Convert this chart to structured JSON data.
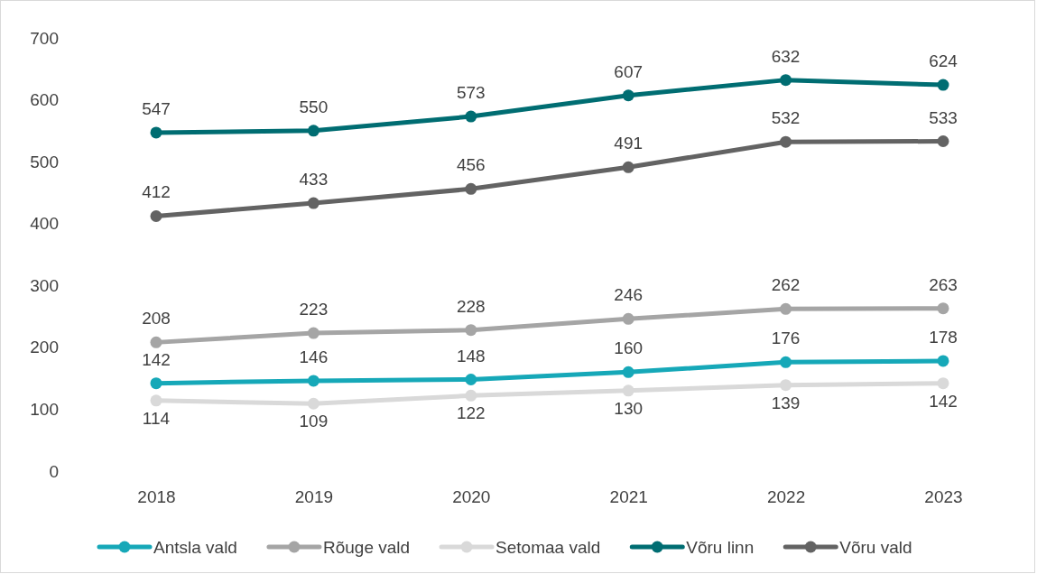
{
  "chart_data": {
    "type": "line",
    "categories": [
      "2018",
      "2019",
      "2020",
      "2021",
      "2022",
      "2023"
    ],
    "series": [
      {
        "name": "Antsla vald",
        "color": "#16a8b8",
        "values": [
          142,
          146,
          148,
          160,
          176,
          178
        ]
      },
      {
        "name": "Rõuge vald",
        "color": "#a5a5a5",
        "values": [
          208,
          223,
          228,
          246,
          262,
          263
        ]
      },
      {
        "name": "Setomaa vald",
        "color": "#d9d9d9",
        "values": [
          114,
          109,
          122,
          130,
          139,
          142
        ]
      },
      {
        "name": "Võru linn",
        "color": "#006d72",
        "values": [
          547,
          550,
          573,
          607,
          632,
          624
        ]
      },
      {
        "name": "Võru vald",
        "color": "#636363",
        "values": [
          412,
          433,
          456,
          491,
          532,
          533
        ]
      }
    ],
    "ylim": [
      0,
      700
    ],
    "yticks": [
      0,
      100,
      200,
      300,
      400,
      500,
      600,
      700
    ],
    "grid": false,
    "legend": "bottom",
    "marker": "circle",
    "line_style": "solid",
    "data_labels": true
  }
}
